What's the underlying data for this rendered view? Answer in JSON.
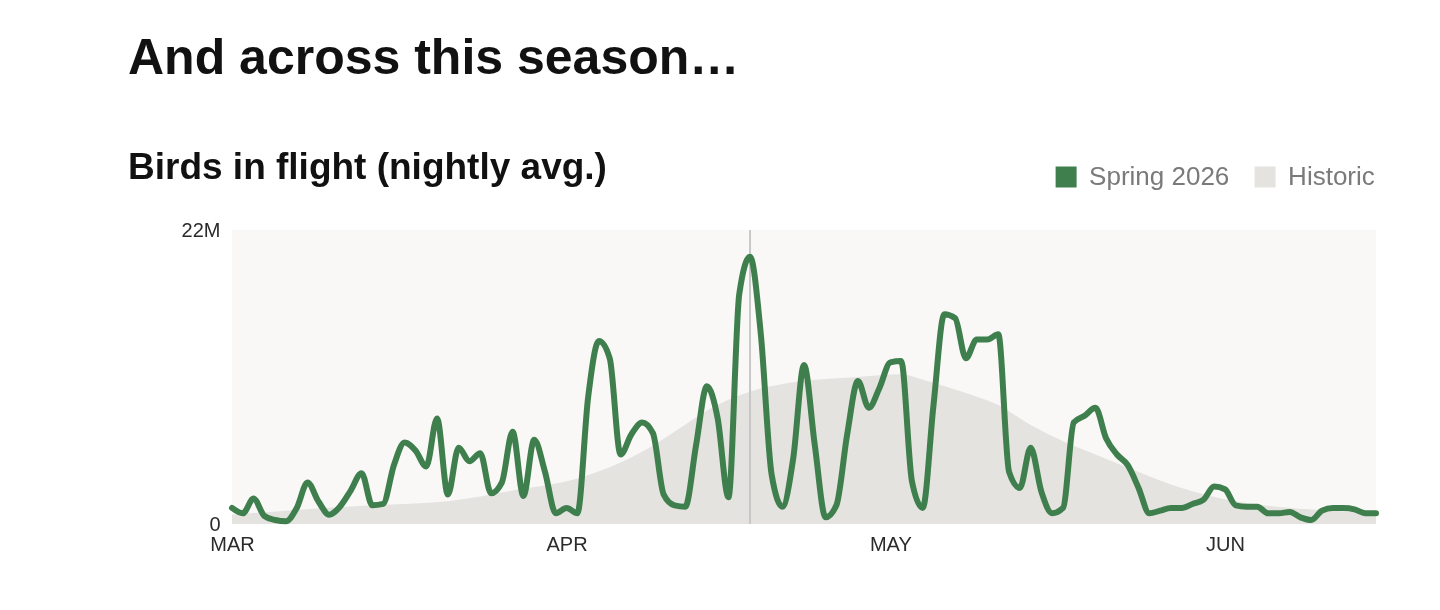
{
  "chart_data": {
    "type": "line",
    "title": "And across this season…",
    "subtitle": "Birds in flight (nightly avg.)",
    "x": [
      "2026-03-01",
      "2026-03-02",
      "2026-03-03",
      "2026-03-04",
      "2026-03-05",
      "2026-03-06",
      "2026-03-07",
      "2026-03-08",
      "2026-03-09",
      "2026-03-10",
      "2026-03-11",
      "2026-03-12",
      "2026-03-13",
      "2026-03-14",
      "2026-03-15",
      "2026-03-16",
      "2026-03-17",
      "2026-03-18",
      "2026-03-19",
      "2026-03-20",
      "2026-03-21",
      "2026-03-22",
      "2026-03-23",
      "2026-03-24",
      "2026-03-25",
      "2026-03-26",
      "2026-03-27",
      "2026-03-28",
      "2026-03-29",
      "2026-03-30",
      "2026-03-31",
      "2026-04-01",
      "2026-04-02",
      "2026-04-03",
      "2026-04-04",
      "2026-04-05",
      "2026-04-06",
      "2026-04-07",
      "2026-04-08",
      "2026-04-09",
      "2026-04-10",
      "2026-04-11",
      "2026-04-12",
      "2026-04-13",
      "2026-04-14",
      "2026-04-15",
      "2026-04-16",
      "2026-04-17",
      "2026-04-18",
      "2026-04-19",
      "2026-04-20",
      "2026-04-21",
      "2026-04-22",
      "2026-04-23",
      "2026-04-24",
      "2026-04-25",
      "2026-04-26",
      "2026-04-27",
      "2026-04-28",
      "2026-04-29",
      "2026-04-30",
      "2026-05-01",
      "2026-05-02",
      "2026-05-03",
      "2026-05-04",
      "2026-05-05",
      "2026-05-06",
      "2026-05-07",
      "2026-05-08",
      "2026-05-09",
      "2026-05-10",
      "2026-05-11",
      "2026-05-12",
      "2026-05-13",
      "2026-05-14",
      "2026-05-15",
      "2026-05-16",
      "2026-05-17",
      "2026-05-18",
      "2026-05-19",
      "2026-05-20",
      "2026-05-21",
      "2026-05-22",
      "2026-05-23",
      "2026-05-24",
      "2026-05-25",
      "2026-05-26",
      "2026-05-27",
      "2026-05-28",
      "2026-05-29",
      "2026-05-30",
      "2026-05-31",
      "2026-06-01",
      "2026-06-02",
      "2026-06-03",
      "2026-06-04",
      "2026-06-05",
      "2026-06-06",
      "2026-06-07",
      "2026-06-08",
      "2026-06-09",
      "2026-06-10",
      "2026-06-11",
      "2026-06-12",
      "2026-06-13",
      "2026-06-14",
      "2026-06-15"
    ],
    "series": [
      {
        "name": "Spring 2026",
        "color": "#3f7f4e",
        "values": [
          1.2,
          0.8,
          1.9,
          0.6,
          0.3,
          0.2,
          1.2,
          3.1,
          1.7,
          0.7,
          1.3,
          2.5,
          3.8,
          1.4,
          1.5,
          4.4,
          6.1,
          5.5,
          4.3,
          7.9,
          2.2,
          5.7,
          4.7,
          5.3,
          2.3,
          3.1,
          6.9,
          2.1,
          6.3,
          3.9,
          0.8,
          1.2,
          0.8,
          9.5,
          13.7,
          12.4,
          5.2,
          6.7,
          7.6,
          6.8,
          2.2,
          1.4,
          1.3,
          5.9,
          10.3,
          7.9,
          2.0,
          17.2,
          20.0,
          14.2,
          3.7,
          1.3,
          4.9,
          11.9,
          5.9,
          0.5,
          1.4,
          6.7,
          10.7,
          8.7,
          10.2,
          12.1,
          12.2,
          3.2,
          1.2,
          8.9,
          15.7,
          15.4,
          12.4,
          13.8,
          13.8,
          14.2,
          3.9,
          2.7,
          5.7,
          2.4,
          0.8,
          1.2,
          7.6,
          8.1,
          8.7,
          6.4,
          5.2,
          4.4,
          2.7,
          0.8,
          1.0,
          1.2,
          1.2,
          1.5,
          1.8,
          2.8,
          2.6,
          1.4,
          1.3,
          1.3,
          0.8,
          0.8,
          0.9,
          0.5,
          0.3,
          1.0,
          1.2,
          1.2,
          1.1,
          0.8,
          0.8
        ]
      },
      {
        "name": "Historic",
        "type": "area",
        "color": "#e4e3df",
        "x": [
          "2026-03-01",
          "2026-03-06",
          "2026-03-14",
          "2026-03-21",
          "2026-03-25",
          "2026-03-27",
          "2026-04-02",
          "2026-04-08",
          "2026-04-11",
          "2026-04-14",
          "2026-04-18",
          "2026-04-22",
          "2026-04-28",
          "2026-05-02",
          "2026-05-04",
          "2026-05-08",
          "2026-05-11",
          "2026-05-14",
          "2026-05-17",
          "2026-05-20",
          "2026-05-24",
          "2026-05-28",
          "2026-06-02",
          "2026-06-07",
          "2026-06-11",
          "2026-06-15"
        ],
        "values": [
          0.7,
          1.0,
          1.4,
          1.7,
          2.2,
          2.5,
          3.4,
          5.4,
          6.9,
          8.5,
          9.9,
          10.6,
          11.0,
          11.2,
          10.8,
          9.8,
          8.9,
          7.4,
          6.2,
          5.2,
          3.9,
          2.7,
          1.7,
          1.2,
          1.0,
          0.8
        ]
      }
    ],
    "xlim": [
      "2026-03-01",
      "2026-06-15"
    ],
    "xticks": [
      {
        "value": "2026-03-01",
        "label": "MAR"
      },
      {
        "value": "2026-04-01",
        "label": "APR"
      },
      {
        "value": "2026-05-01",
        "label": "MAY"
      },
      {
        "value": "2026-06-01",
        "label": "JUN"
      }
    ],
    "ylim": [
      0,
      22
    ],
    "yticks": [
      0,
      {
        "value": 22,
        "label": "22M"
      }
    ],
    "ref_lines": [
      {
        "axis": "x",
        "value": "2026-04-18",
        "color": "#c8c8c8"
      }
    ],
    "legend": "top right"
  }
}
